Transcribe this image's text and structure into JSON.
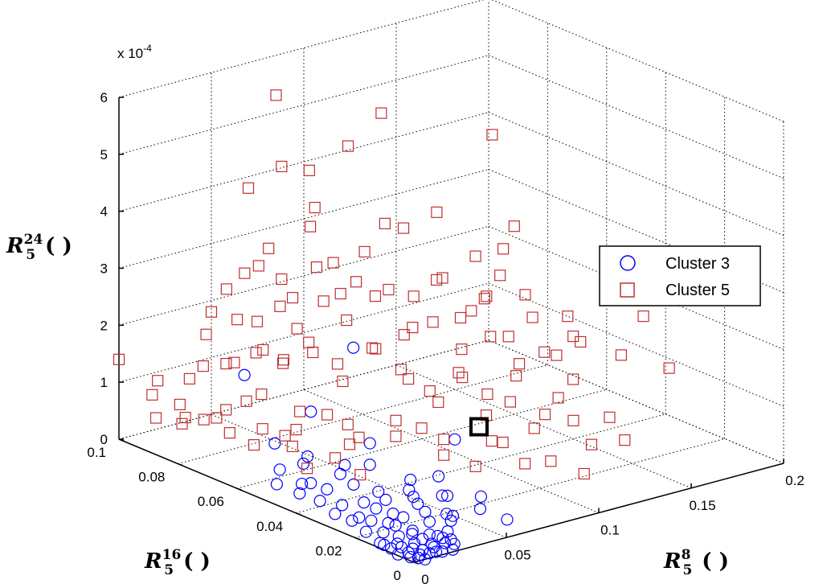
{
  "chart_data": {
    "type": "scatter3d",
    "exponent_label": "x 10",
    "exponent_power": "-4",
    "z_ticks": [
      "0",
      "1",
      "2",
      "3",
      "4",
      "5",
      "6"
    ],
    "y_ticks": [
      "0",
      "0.02",
      "0.04",
      "0.06",
      "0.08",
      "0.1"
    ],
    "x_ticks": [
      "0",
      "0.05",
      "0.1",
      "0.15",
      "0.2"
    ],
    "zlabel": {
      "main": "R",
      "sub": "5",
      "sup": "24",
      "tail": "( )"
    },
    "ylabel": {
      "main": "R",
      "sub": "5",
      "sup": "16",
      "tail": "( )"
    },
    "xlabel": {
      "main": "R",
      "sub": "5",
      "sup": "8",
      "tail": "( )"
    },
    "xlim": [
      0,
      0.2
    ],
    "ylim": [
      0,
      0.1
    ],
    "zlim": [
      0,
      6
    ],
    "legend": [
      {
        "name": "Cluster 3",
        "marker": "circle",
        "color": "#0000ff"
      },
      {
        "name": "Cluster 5",
        "marker": "square",
        "color": "#c03030"
      }
    ],
    "highlight": {
      "x": 0.115,
      "y": 0.05,
      "z": 0.3
    },
    "series": [
      {
        "name": "Cluster 3",
        "marker": "circle",
        "color": "#0000ff",
        "points": [
          [
            0.006,
            0.0,
            0.0
          ],
          [
            0.01,
            0.001,
            0.05
          ],
          [
            0.014,
            0.002,
            0.1
          ],
          [
            0.008,
            0.003,
            0.0
          ],
          [
            0.012,
            0.0,
            0.08
          ],
          [
            0.005,
            0.005,
            0.02
          ],
          [
            0.016,
            0.004,
            0.1
          ],
          [
            0.02,
            0.002,
            0.12
          ],
          [
            0.009,
            0.006,
            0.03
          ],
          [
            0.013,
            0.008,
            0.05
          ],
          [
            0.018,
            0.006,
            0.2
          ],
          [
            0.022,
            0.004,
            0.15
          ],
          [
            0.007,
            0.01,
            0.05
          ],
          [
            0.011,
            0.012,
            0.1
          ],
          [
            0.015,
            0.01,
            0.15
          ],
          [
            0.019,
            0.009,
            0.05
          ],
          [
            0.024,
            0.007,
            0.1
          ],
          [
            0.028,
            0.005,
            0.05
          ],
          [
            0.004,
            0.014,
            0.0
          ],
          [
            0.009,
            0.016,
            0.1
          ],
          [
            0.014,
            0.015,
            0.2
          ],
          [
            0.02,
            0.013,
            0.1
          ],
          [
            0.026,
            0.011,
            0.25
          ],
          [
            0.031,
            0.008,
            0.1
          ],
          [
            0.006,
            0.02,
            0.05
          ],
          [
            0.012,
            0.022,
            0.15
          ],
          [
            0.018,
            0.02,
            0.1
          ],
          [
            0.023,
            0.018,
            0.2
          ],
          [
            0.03,
            0.015,
            0.3
          ],
          [
            0.036,
            0.01,
            0.2
          ],
          [
            0.008,
            0.026,
            0.1
          ],
          [
            0.015,
            0.028,
            0.05
          ],
          [
            0.021,
            0.026,
            0.2
          ],
          [
            0.027,
            0.024,
            0.1
          ],
          [
            0.034,
            0.02,
            0.3
          ],
          [
            0.04,
            0.014,
            0.2
          ],
          [
            0.01,
            0.033,
            0.05
          ],
          [
            0.017,
            0.035,
            0.1
          ],
          [
            0.024,
            0.032,
            0.15
          ],
          [
            0.031,
            0.029,
            0.2
          ],
          [
            0.038,
            0.024,
            0.3
          ],
          [
            0.044,
            0.018,
            0.4
          ],
          [
            0.013,
            0.04,
            0.1
          ],
          [
            0.02,
            0.042,
            0.2
          ],
          [
            0.028,
            0.038,
            0.3
          ],
          [
            0.035,
            0.034,
            0.2
          ],
          [
            0.042,
            0.028,
            0.3
          ],
          [
            0.016,
            0.048,
            0.2
          ],
          [
            0.024,
            0.05,
            0.1
          ],
          [
            0.032,
            0.045,
            0.3
          ],
          [
            0.003,
            0.003,
            0.0
          ],
          [
            0.001,
            0.006,
            0.0
          ],
          [
            0.004,
            0.001,
            0.02
          ],
          [
            0.002,
            0.009,
            0.03
          ],
          [
            0.017,
            0.001,
            0.02
          ],
          [
            0.021,
            0.0,
            0.04
          ],
          [
            0.025,
            0.002,
            0.06
          ],
          [
            0.003,
            0.012,
            0.02
          ],
          [
            0.006,
            0.008,
            0.04
          ],
          [
            0.011,
            0.004,
            0.03
          ],
          [
            0.05,
            0.02,
            0.3
          ],
          [
            0.055,
            0.012,
            0.2
          ],
          [
            0.06,
            0.006,
            0.1
          ],
          [
            0.046,
            0.03,
            0.4
          ],
          [
            0.036,
            0.046,
            0.4
          ],
          [
            0.028,
            0.055,
            0.3
          ],
          [
            0.04,
            0.04,
            0.5
          ],
          [
            0.07,
            0.03,
            0.9
          ],
          [
            0.02,
            0.058,
            0.2
          ],
          [
            0.012,
            0.054,
            0.1
          ],
          [
            0.035,
            0.058,
            0.3
          ],
          [
            0.048,
            0.045,
            0.7
          ],
          [
            0.03,
            0.066,
            0.4
          ],
          [
            0.04,
            0.06,
            1.0
          ],
          [
            0.058,
            0.028,
            0.4
          ],
          [
            0.02,
            0.07,
            1.6
          ],
          [
            0.055,
            0.055,
            2.1
          ],
          [
            0.045,
            0.015,
            0.1
          ],
          [
            0.01,
            0.045,
            0.15
          ],
          [
            0.065,
            0.018,
            0.2
          ]
        ]
      },
      {
        "name": "Cluster 5",
        "marker": "square",
        "color": "#c03030",
        "points": [
          [
            0.02,
            0.1,
            0.2
          ],
          [
            0.025,
            0.095,
            0.5
          ],
          [
            0.03,
            0.09,
            0.3
          ],
          [
            0.035,
            0.098,
            0.8
          ],
          [
            0.015,
            0.088,
            0.4
          ],
          [
            0.04,
            0.092,
            0.2
          ],
          [
            0.045,
            0.085,
            0.6
          ],
          [
            0.028,
            0.08,
            0.3
          ],
          [
            0.05,
            0.095,
            1.0
          ],
          [
            0.033,
            0.072,
            0.5
          ],
          [
            0.042,
            0.078,
            0.9
          ],
          [
            0.055,
            0.088,
            1.3
          ],
          [
            0.048,
            0.07,
            0.4
          ],
          [
            0.06,
            0.082,
            1.2
          ],
          [
            0.038,
            0.065,
            0.3
          ],
          [
            0.052,
            0.062,
            0.8
          ],
          [
            0.065,
            0.075,
            1.5
          ],
          [
            0.058,
            0.055,
            0.5
          ],
          [
            0.07,
            0.068,
            1.1
          ],
          [
            0.045,
            0.05,
            0.6
          ],
          [
            0.075,
            0.06,
            1.8
          ],
          [
            0.062,
            0.045,
            0.7
          ],
          [
            0.08,
            0.052,
            1.4
          ],
          [
            0.068,
            0.04,
            0.9
          ],
          [
            0.085,
            0.045,
            1.1
          ],
          [
            0.072,
            0.035,
            0.5
          ],
          [
            0.09,
            0.04,
            1.6
          ],
          [
            0.078,
            0.028,
            0.4
          ],
          [
            0.095,
            0.035,
            1.0
          ],
          [
            0.088,
            0.025,
            0.8
          ],
          [
            0.1,
            0.03,
            1.3
          ],
          [
            0.092,
            0.02,
            0.5
          ],
          [
            0.105,
            0.025,
            0.9
          ],
          [
            0.11,
            0.02,
            1.5
          ],
          [
            0.098,
            0.015,
            0.6
          ],
          [
            0.115,
            0.018,
            1.1
          ],
          [
            0.12,
            0.015,
            0.7
          ],
          [
            0.108,
            0.01,
            0.4
          ],
          [
            0.125,
            0.012,
            1.2
          ],
          [
            0.13,
            0.01,
            0.8
          ],
          [
            0.06,
            0.095,
            2.5
          ],
          [
            0.065,
            0.09,
            3.0
          ],
          [
            0.07,
            0.085,
            2.2
          ],
          [
            0.075,
            0.08,
            2.8
          ],
          [
            0.08,
            0.075,
            2.4
          ],
          [
            0.085,
            0.07,
            3.2
          ],
          [
            0.09,
            0.065,
            2.6
          ],
          [
            0.095,
            0.06,
            2.0
          ],
          [
            0.1,
            0.055,
            2.9
          ],
          [
            0.105,
            0.05,
            2.3
          ],
          [
            0.11,
            0.045,
            2.7
          ],
          [
            0.115,
            0.04,
            2.1
          ],
          [
            0.12,
            0.035,
            2.5
          ],
          [
            0.125,
            0.03,
            1.9
          ],
          [
            0.13,
            0.025,
            2.2
          ],
          [
            0.05,
            0.1,
            1.8
          ],
          [
            0.055,
            0.098,
            2.2
          ],
          [
            0.062,
            0.092,
            1.7
          ],
          [
            0.068,
            0.088,
            2.0
          ],
          [
            0.074,
            0.086,
            1.6
          ],
          [
            0.082,
            0.082,
            2.1
          ],
          [
            0.088,
            0.078,
            1.8
          ],
          [
            0.094,
            0.072,
            2.3
          ],
          [
            0.1,
            0.066,
            1.7
          ],
          [
            0.106,
            0.06,
            2.0
          ],
          [
            0.112,
            0.054,
            1.6
          ],
          [
            0.118,
            0.048,
            1.9
          ],
          [
            0.124,
            0.042,
            1.5
          ],
          [
            0.128,
            0.036,
            1.8
          ],
          [
            0.134,
            0.03,
            1.4
          ],
          [
            0.066,
            0.094,
            2.6
          ],
          [
            0.072,
            0.09,
            2.4
          ],
          [
            0.078,
            0.084,
            3.4
          ],
          [
            0.084,
            0.08,
            2.8
          ],
          [
            0.09,
            0.076,
            2.5
          ],
          [
            0.096,
            0.07,
            3.6
          ],
          [
            0.102,
            0.064,
            2.4
          ],
          [
            0.108,
            0.058,
            2.8
          ],
          [
            0.114,
            0.052,
            2.3
          ],
          [
            0.12,
            0.046,
            3.0
          ],
          [
            0.07,
            0.1,
            3.8
          ],
          [
            0.08,
            0.095,
            4.2
          ],
          [
            0.09,
            0.09,
            3.5
          ],
          [
            0.1,
            0.085,
            4.6
          ],
          [
            0.11,
            0.08,
            5.2
          ],
          [
            0.085,
            0.1,
            5.3
          ],
          [
            0.095,
            0.095,
            4.0
          ],
          [
            0.15,
            0.06,
            3.3
          ],
          [
            0.17,
            0.08,
            4.3
          ],
          [
            0.16,
            0.07,
            2.6
          ],
          [
            0.14,
            0.05,
            2.4
          ],
          [
            0.15,
            0.04,
            1.8
          ],
          [
            0.16,
            0.03,
            1.6
          ],
          [
            0.17,
            0.02,
            1.5
          ],
          [
            0.18,
            0.035,
            2.0
          ],
          [
            0.14,
            0.08,
            3.2
          ],
          [
            0.13,
            0.085,
            2.9
          ],
          [
            0.145,
            0.07,
            2.6
          ],
          [
            0.135,
            0.06,
            2.2
          ],
          [
            0.155,
            0.045,
            2.0
          ],
          [
            0.01,
            0.095,
            0.8
          ],
          [
            0.012,
            0.085,
            0.6
          ],
          [
            0.018,
            0.075,
            0.9
          ],
          [
            0.022,
            0.068,
            0.4
          ],
          [
            0.026,
            0.06,
            0.7
          ],
          [
            0.03,
            0.055,
            0.2
          ],
          [
            0.034,
            0.048,
            0.5
          ],
          [
            0.038,
            0.042,
            0.3
          ],
          [
            0.0,
            0.1,
            1.4
          ],
          [
            0.005,
            0.09,
            1.2
          ],
          [
            0.044,
            0.098,
            1.5
          ],
          [
            0.036,
            0.094,
            1.1
          ],
          [
            0.048,
            0.09,
            1.9
          ],
          [
            0.04,
            0.086,
            1.3
          ],
          [
            0.046,
            0.08,
            1.6
          ],
          [
            0.054,
            0.078,
            1.4
          ],
          [
            0.058,
            0.072,
            1.8
          ],
          [
            0.064,
            0.066,
            1.5
          ],
          [
            0.07,
            0.058,
            1.9
          ],
          [
            0.076,
            0.052,
            1.6
          ],
          [
            0.082,
            0.046,
            1.3
          ],
          [
            0.088,
            0.04,
            1.7
          ],
          [
            0.094,
            0.034,
            1.4
          ],
          [
            0.1,
            0.028,
            1.8
          ],
          [
            0.106,
            0.022,
            1.2
          ],
          [
            0.06,
            0.06,
            0.6
          ],
          [
            0.07,
            0.05,
            0.8
          ],
          [
            0.08,
            0.04,
            0.6
          ],
          [
            0.09,
            0.03,
            0.7
          ],
          [
            0.05,
            0.07,
            0.7
          ]
        ]
      }
    ]
  }
}
